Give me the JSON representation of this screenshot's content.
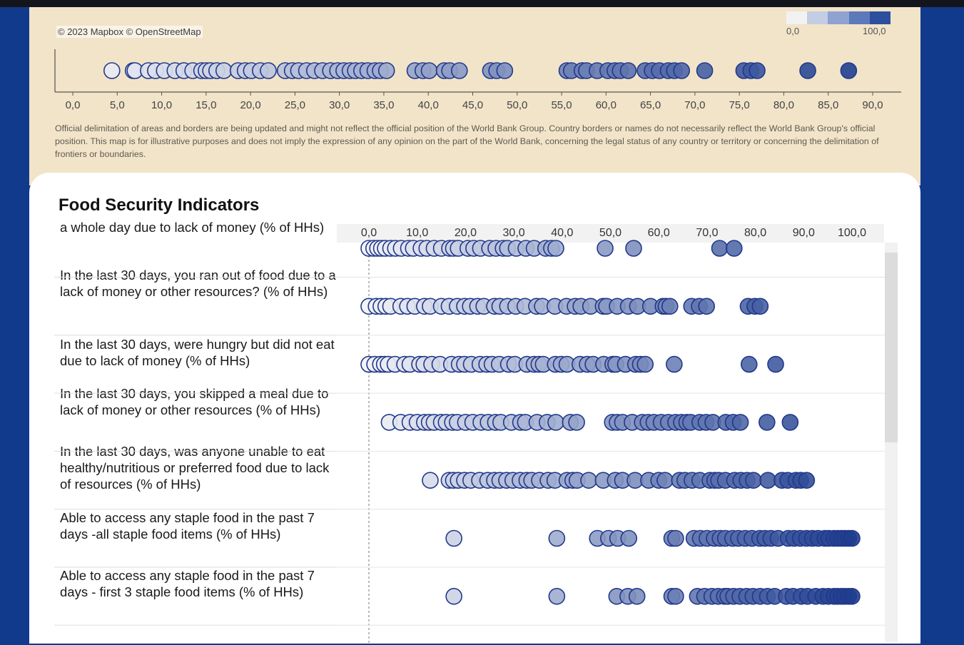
{
  "map_attribution": "© 2023 Mapbox  © OpenStreetMap",
  "legend": {
    "min_label": "0,0",
    "max_label": "100,0",
    "colors": [
      "#f2f2f2",
      "#c3cde3",
      "#8fa3d0",
      "#5c79bb",
      "#2c4f9e"
    ]
  },
  "disclaimer": "Official delimitation of areas and borders are being updated and might not reflect the official position of the World Bank Group. Country borders or names do not necessarily reflect the World Bank Group's official position. This map is for illustrative purposes and does not imply the expression of any opinion on the part of the World Bank, concerning the legal status of any country or territory or concerning the delimitation of frontiers or boundaries.",
  "main_title": "Food Security Indicators",
  "colors": {
    "background": "#123a8c",
    "panel_top": "#f1e4c9",
    "stroke": "#22388a",
    "dot_low": "#f2f3f7",
    "dot_high": "#1f3e8f"
  },
  "chart_data": [
    {
      "type": "scatter",
      "xlim": [
        0,
        92
      ],
      "ticks": [
        "0,0",
        "5,0",
        "10,0",
        "15,0",
        "20,0",
        "25,0",
        "30,0",
        "35,0",
        "40,0",
        "45,0",
        "50,0",
        "55,0",
        "60,0",
        "65,0",
        "70,0",
        "75,0",
        "80,0",
        "85,0",
        "90,0"
      ],
      "values": [
        4.4,
        6.8,
        7.0,
        8.5,
        9.3,
        10.3,
        11.5,
        12.5,
        13.5,
        14.5,
        15.0,
        15.5,
        16.2,
        17.0,
        18.6,
        19.4,
        20.1,
        21.1,
        22.0,
        23.9,
        24.7,
        25.4,
        26.3,
        27.2,
        28.1,
        29.0,
        29.8,
        30.5,
        31.2,
        31.8,
        32.5,
        33.2,
        34.0,
        34.6,
        35.3,
        38.5,
        39.4,
        40.1,
        41.8,
        42.4,
        43.5,
        47.0,
        47.7,
        48.6,
        55.6,
        56.1,
        57.3,
        57.8,
        59.0,
        60.2,
        61.0,
        61.6,
        62.5,
        64.4,
        65.2,
        66.0,
        67.0,
        67.7,
        68.5,
        71.1,
        75.5,
        76.3,
        77.0,
        82.7,
        87.3
      ]
    },
    {
      "type": "scatter",
      "xlim": [
        0,
        100
      ],
      "ticks": [
        "0,0",
        "10,0",
        "20,0",
        "30,0",
        "40,0",
        "50,0",
        "60,0",
        "70,0",
        "80,0",
        "90,0",
        "100,0"
      ],
      "rows": [
        {
          "label": "a whole day due to lack of money (% of HHs)",
          "values": [
            0.0,
            1.0,
            1.8,
            2.6,
            3.4,
            4.5,
            5.5,
            6.7,
            8.2,
            9.2,
            10.8,
            12.0,
            13.5,
            15.0,
            16.7,
            17.5,
            18.5,
            20.5,
            21.7,
            23.1,
            25.0,
            26.3,
            27.8,
            28.7,
            30.5,
            32.5,
            34.2,
            36.6,
            37.8,
            38.7,
            48.9,
            54.8,
            72.6,
            75.6
          ]
        },
        {
          "label": "In the last 30 days, you ran out of food due to a lack of money or other resources? (% of HHs)",
          "values": [
            0.0,
            1.5,
            2.5,
            3.5,
            4.5,
            6.6,
            8.0,
            9.5,
            11.5,
            12.7,
            15.0,
            16.6,
            18.3,
            19.8,
            21.0,
            22.5,
            23.8,
            26.0,
            27.1,
            28.7,
            30.4,
            32.3,
            34.7,
            35.9,
            38.5,
            40.9,
            42.7,
            43.9,
            45.9,
            48.5,
            49.2,
            51.4,
            53.7,
            55.6,
            58.3,
            60.9,
            61.5,
            62.3,
            66.8,
            68.4,
            69.9,
            78.5,
            79.9,
            81.0
          ]
        },
        {
          "label": "In the last 30 days, were hungry but did not eat due to lack of money (% of HHs)",
          "values": [
            0.0,
            1.2,
            2.4,
            3.2,
            4.0,
            5.4,
            7.4,
            8.5,
            10.5,
            11.4,
            13.0,
            14.7,
            17.1,
            18.7,
            19.8,
            21.2,
            23.0,
            24.4,
            25.5,
            27.0,
            28.9,
            30.2,
            32.7,
            34.2,
            35.2,
            36.1,
            38.6,
            39.8,
            41.0,
            43.7,
            45.2,
            46.4,
            48.6,
            50.5,
            51.1,
            53.1,
            55.2,
            56.2,
            57.2,
            63.2,
            78.7,
            84.2
          ]
        },
        {
          "label": "In the last 30 days, you skipped a meal due to lack of money or other resources (% of HHs)",
          "values": [
            4.2,
            6.6,
            8.5,
            10.0,
            11.5,
            12.5,
            13.5,
            15.0,
            16.0,
            17.3,
            18.3,
            20.0,
            21.5,
            23.2,
            24.7,
            26.2,
            27.3,
            29.5,
            31.4,
            32.4,
            34.8,
            36.9,
            38.7,
            41.7,
            43.0,
            50.4,
            51.4,
            52.5,
            54.5,
            56.6,
            57.8,
            59.0,
            60.5,
            62.0,
            63.5,
            64.7,
            65.8,
            66.6,
            68.5,
            69.8,
            71.2,
            73.9,
            75.4,
            76.9,
            82.4,
            87.2
          ]
        },
        {
          "label": "In the last 30 days, was anyone unable to eat healthy/nutritious or preferred food due to lack of resources (% of HHs)",
          "values": [
            12.7,
            16.6,
            17.5,
            18.5,
            19.8,
            21.1,
            22.9,
            24.6,
            26.0,
            27.1,
            28.5,
            29.8,
            31.3,
            32.7,
            33.7,
            35.3,
            37.1,
            38.5,
            41.0,
            42.2,
            43.1,
            45.5,
            48.5,
            51.0,
            52.5,
            55.1,
            57.9,
            60.0,
            61.3,
            64.3,
            65.4,
            66.9,
            68.5,
            70.6,
            71.6,
            72.4,
            73.8,
            75.7,
            77.0,
            78.3,
            79.6,
            82.6,
            85.5,
            86.7,
            88.4,
            89.4,
            90.6
          ]
        },
        {
          "label": "Able to access any staple food in the past 7 days -all staple food items (% of HHs)",
          "values": [
            17.6,
            38.9,
            47.3,
            49.6,
            51.5,
            53.8,
            62.7,
            63.5,
            67.3,
            68.6,
            70.0,
            71.5,
            72.7,
            73.8,
            75.3,
            76.5,
            77.9,
            79.3,
            80.9,
            82.0,
            83.2,
            84.7,
            86.8,
            88.0,
            89.3,
            90.6,
            91.8,
            93.0,
            94.4,
            95.2,
            96.3,
            97.1,
            97.8,
            98.5,
            99.3,
            100.0
          ]
        },
        {
          "label": "Able to access any staple food in the past 7 days - first 3 staple food items (% of HHs)",
          "values": [
            17.6,
            38.9,
            51.3,
            53.6,
            55.5,
            62.7,
            63.5,
            68.0,
            69.5,
            71.0,
            72.3,
            73.6,
            74.3,
            75.5,
            76.8,
            78.2,
            79.5,
            81.0,
            82.5,
            84.0,
            86.4,
            87.8,
            89.5,
            90.8,
            92.5,
            94.0,
            95.1,
            96.3,
            97.0,
            97.8,
            98.5,
            99.3,
            100.0
          ]
        }
      ]
    }
  ]
}
